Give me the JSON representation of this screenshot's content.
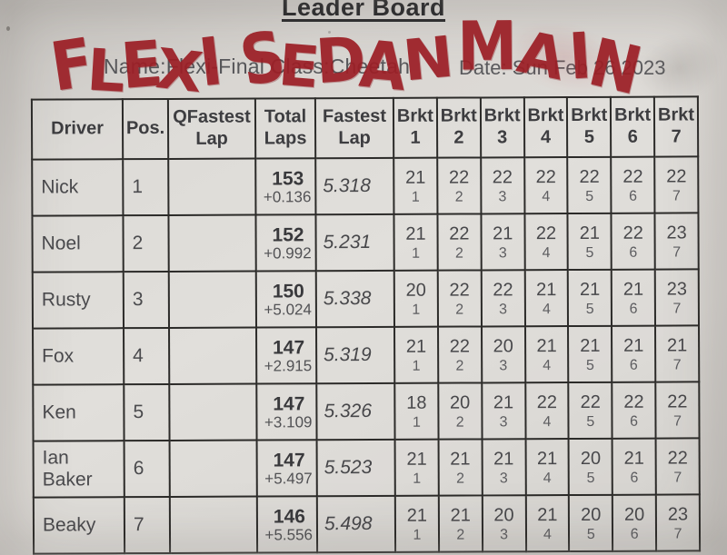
{
  "page": {
    "title": "Leader Board",
    "handwriting_left": "FLEXI SEDAN",
    "handwriting_right": "MAIN",
    "meta_left": "Name:Flexi-Final Class:Cheetah",
    "meta_right": "Date: Sun Feb 26 2023"
  },
  "colors": {
    "marker_red": "#9c1f26",
    "paper": "#d8d5d1",
    "grid_line": "#2c2b29",
    "print_ink": "#3d3d40",
    "print_ink_soft": "#5d5d60"
  },
  "table": {
    "headers": [
      "Driver",
      "Pos.",
      "QFastest Lap",
      "Total Laps",
      "Fastest Lap",
      "Brkt 1",
      "Brkt 2",
      "Brkt 3",
      "Brkt 4",
      "Brkt 5",
      "Brkt 6",
      "Brkt 7"
    ],
    "rows": [
      {
        "driver": "Nick",
        "pos": "1",
        "qfastest_lap": "",
        "total_laps": "153",
        "total_gap": "+0.136",
        "fastest_lap": "5.318",
        "brkts": [
          {
            "laps": "21",
            "rank": "1"
          },
          {
            "laps": "22",
            "rank": "2"
          },
          {
            "laps": "22",
            "rank": "3"
          },
          {
            "laps": "22",
            "rank": "4"
          },
          {
            "laps": "22",
            "rank": "5"
          },
          {
            "laps": "22",
            "rank": "6"
          },
          {
            "laps": "22",
            "rank": "7"
          }
        ]
      },
      {
        "driver": "Noel",
        "pos": "2",
        "qfastest_lap": "",
        "total_laps": "152",
        "total_gap": "+0.992",
        "fastest_lap": "5.231",
        "brkts": [
          {
            "laps": "21",
            "rank": "1"
          },
          {
            "laps": "22",
            "rank": "2"
          },
          {
            "laps": "21",
            "rank": "3"
          },
          {
            "laps": "22",
            "rank": "4"
          },
          {
            "laps": "21",
            "rank": "5"
          },
          {
            "laps": "22",
            "rank": "6"
          },
          {
            "laps": "23",
            "rank": "7"
          }
        ]
      },
      {
        "driver": "Rusty",
        "pos": "3",
        "qfastest_lap": "",
        "total_laps": "150",
        "total_gap": "+5.024",
        "fastest_lap": "5.338",
        "brkts": [
          {
            "laps": "20",
            "rank": "1"
          },
          {
            "laps": "22",
            "rank": "2"
          },
          {
            "laps": "22",
            "rank": "3"
          },
          {
            "laps": "21",
            "rank": "4"
          },
          {
            "laps": "21",
            "rank": "5"
          },
          {
            "laps": "21",
            "rank": "6"
          },
          {
            "laps": "23",
            "rank": "7"
          }
        ]
      },
      {
        "driver": "Fox",
        "pos": "4",
        "qfastest_lap": "",
        "total_laps": "147",
        "total_gap": "+2.915",
        "fastest_lap": "5.319",
        "brkts": [
          {
            "laps": "21",
            "rank": "1"
          },
          {
            "laps": "22",
            "rank": "2"
          },
          {
            "laps": "20",
            "rank": "3"
          },
          {
            "laps": "21",
            "rank": "4"
          },
          {
            "laps": "21",
            "rank": "5"
          },
          {
            "laps": "21",
            "rank": "6"
          },
          {
            "laps": "21",
            "rank": "7"
          }
        ]
      },
      {
        "driver": "Ken",
        "pos": "5",
        "qfastest_lap": "",
        "total_laps": "147",
        "total_gap": "+3.109",
        "fastest_lap": "5.326",
        "brkts": [
          {
            "laps": "18",
            "rank": "1"
          },
          {
            "laps": "20",
            "rank": "2"
          },
          {
            "laps": "21",
            "rank": "3"
          },
          {
            "laps": "22",
            "rank": "4"
          },
          {
            "laps": "22",
            "rank": "5"
          },
          {
            "laps": "22",
            "rank": "6"
          },
          {
            "laps": "22",
            "rank": "7"
          }
        ]
      },
      {
        "driver": "Ian Baker",
        "pos": "6",
        "qfastest_lap": "",
        "total_laps": "147",
        "total_gap": "+5.497",
        "fastest_lap": "5.523",
        "brkts": [
          {
            "laps": "21",
            "rank": "1"
          },
          {
            "laps": "21",
            "rank": "2"
          },
          {
            "laps": "21",
            "rank": "3"
          },
          {
            "laps": "21",
            "rank": "4"
          },
          {
            "laps": "20",
            "rank": "5"
          },
          {
            "laps": "21",
            "rank": "6"
          },
          {
            "laps": "22",
            "rank": "7"
          }
        ]
      },
      {
        "driver": "Beaky",
        "pos": "7",
        "qfastest_lap": "",
        "total_laps": "146",
        "total_gap": "+5.556",
        "fastest_lap": "5.498",
        "brkts": [
          {
            "laps": "21",
            "rank": "1"
          },
          {
            "laps": "21",
            "rank": "2"
          },
          {
            "laps": "20",
            "rank": "3"
          },
          {
            "laps": "21",
            "rank": "4"
          },
          {
            "laps": "20",
            "rank": "5"
          },
          {
            "laps": "20",
            "rank": "6"
          },
          {
            "laps": "23",
            "rank": "7"
          }
        ]
      }
    ]
  }
}
